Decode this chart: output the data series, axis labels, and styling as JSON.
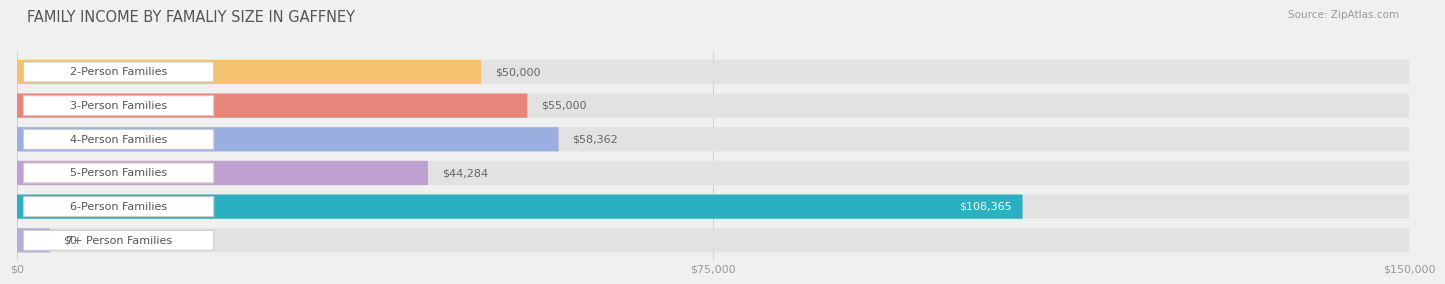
{
  "title": "FAMILY INCOME BY FAMALIY SIZE IN GAFFNEY",
  "source": "Source: ZipAtlas.com",
  "categories": [
    "2-Person Families",
    "3-Person Families",
    "4-Person Families",
    "5-Person Families",
    "6-Person Families",
    "7+ Person Families"
  ],
  "values": [
    50000,
    55000,
    58362,
    44284,
    108365,
    0
  ],
  "bar_colors": [
    "#f5c070",
    "#e8857a",
    "#9aafe0",
    "#c0a0d0",
    "#2ab0c0",
    "#b0b0d8"
  ],
  "label_colors": [
    "#666666",
    "#666666",
    "#666666",
    "#666666",
    "#ffffff",
    "#666666"
  ],
  "value_labels": [
    "$50,000",
    "$55,000",
    "$58,362",
    "$44,284",
    "$108,365",
    "$0"
  ],
  "x_ticks": [
    0,
    75000,
    150000
  ],
  "x_tick_labels": [
    "$0",
    "$75,000",
    "$150,000"
  ],
  "xlim": [
    0,
    150000
  ],
  "background_color": "#f0f0f0",
  "bar_bg_color": "#e2e2e2",
  "title_fontsize": 10.5,
  "label_fontsize": 8,
  "value_fontsize": 8,
  "source_fontsize": 7.5
}
